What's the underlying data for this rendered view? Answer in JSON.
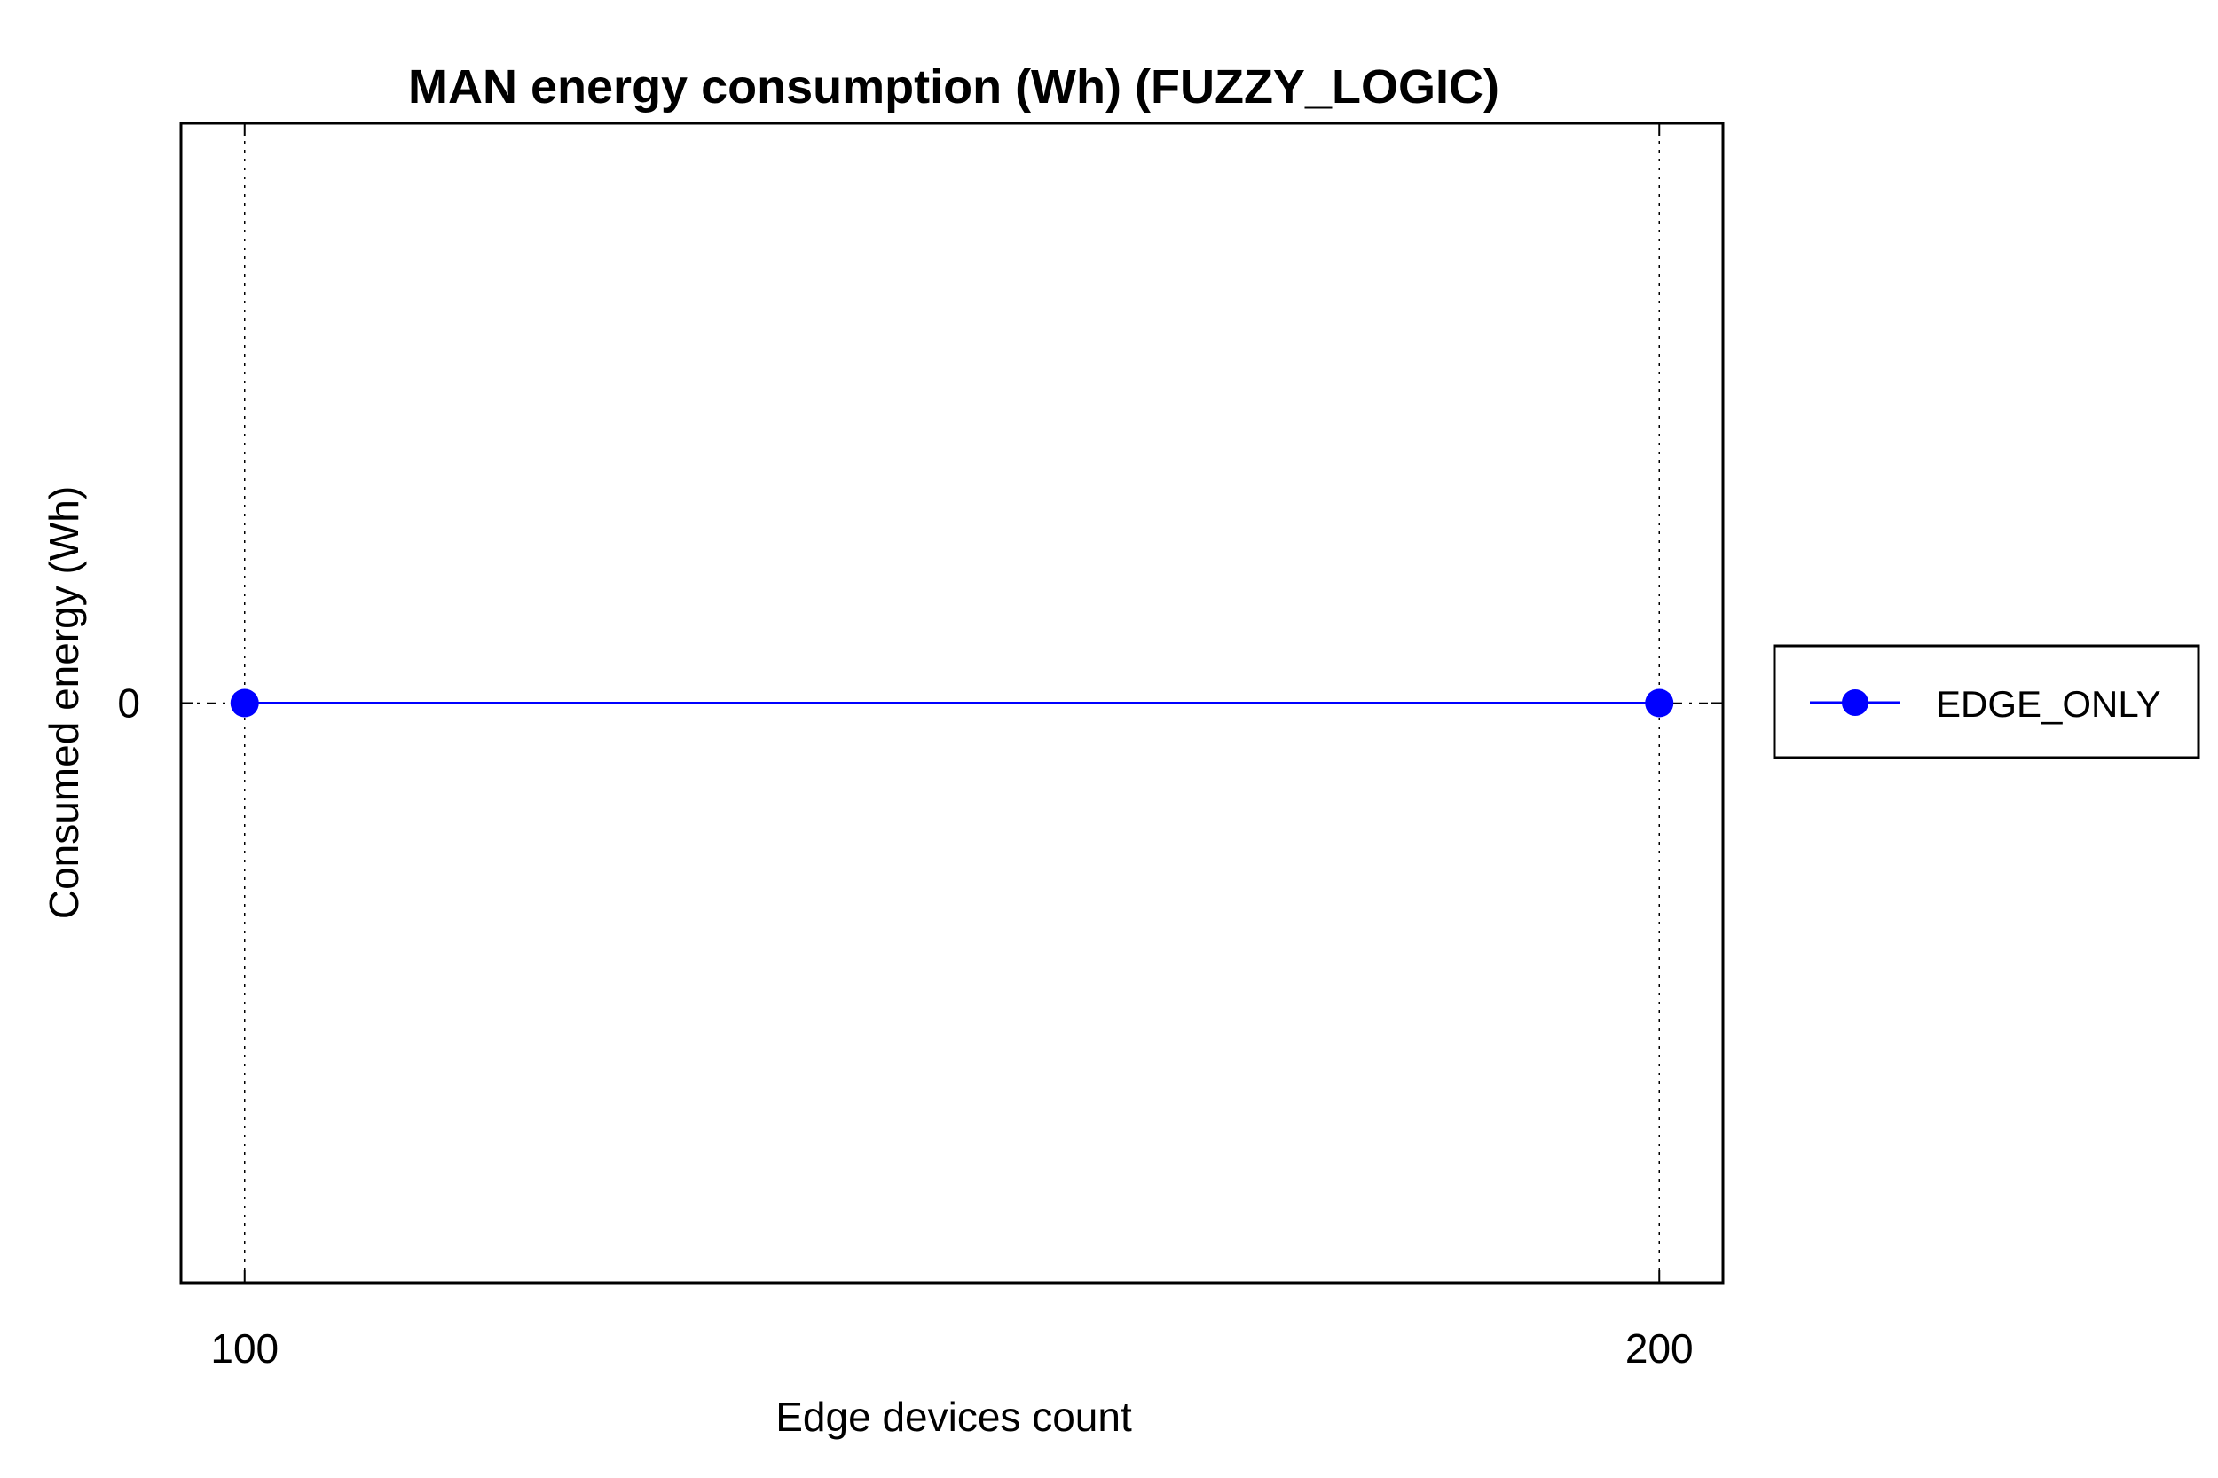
{
  "chart_data": {
    "type": "line",
    "title": "MAN energy consumption (Wh) (FUZZY_LOGIC)",
    "xlabel": "Edge devices count",
    "ylabel": "Consumed energy (Wh)",
    "x": [
      100,
      200
    ],
    "xticks": [
      "100",
      "200"
    ],
    "yticks": [
      "0"
    ],
    "xlim": [
      95.5,
      204.5
    ],
    "ylim": [
      -1,
      1
    ],
    "grid": "vertical-dotted",
    "legend_position": "outside-right",
    "series": [
      {
        "name": "EDGE_ONLY",
        "values": [
          0,
          0
        ],
        "color": "#0000ff",
        "marker": "circle"
      }
    ]
  }
}
